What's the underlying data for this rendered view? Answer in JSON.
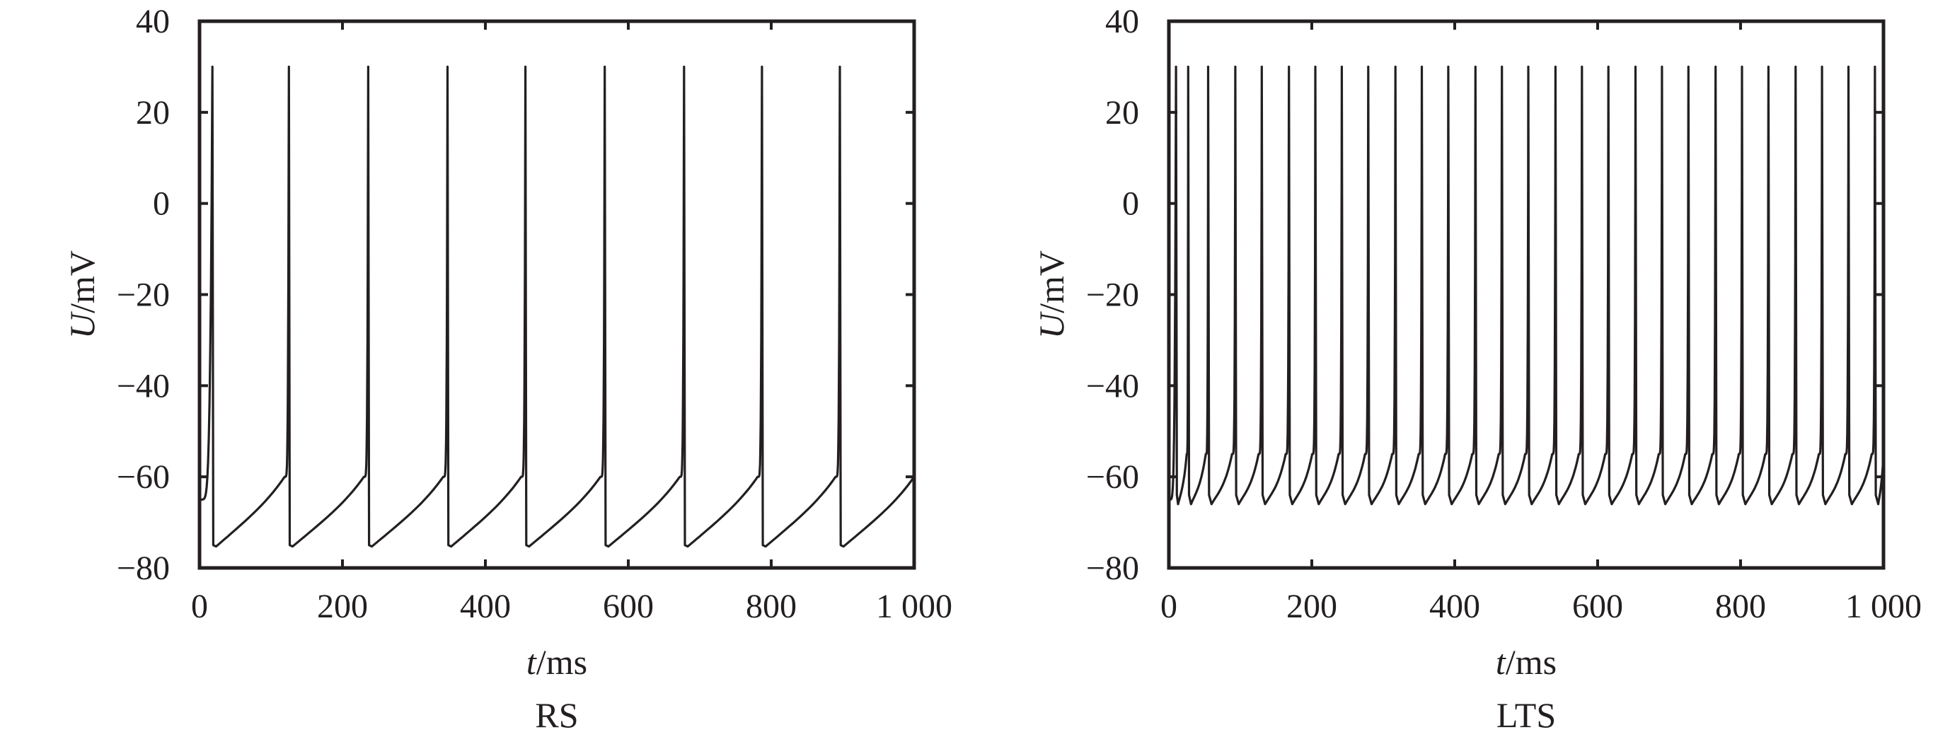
{
  "chart_data": [
    {
      "type": "line",
      "caption": "RS",
      "xlabel_var": "t",
      "xlabel_unit": "/ms",
      "ylabel_var": "U",
      "ylabel_unit": "/mV",
      "xlim": [
        0,
        1000
      ],
      "ylim": [
        -80,
        40
      ],
      "x_ticks": [
        0,
        200,
        400,
        600,
        800,
        1000
      ],
      "x_tick_labels": [
        "0",
        "200",
        "400",
        "600",
        "800",
        "1 000"
      ],
      "y_ticks": [
        -80,
        -60,
        -40,
        -20,
        0,
        20,
        40
      ],
      "y_tick_labels": [
        "−80",
        "−60",
        "−40",
        "−20",
        "0",
        "20",
        "40"
      ],
      "grid": false,
      "series": [
        {
          "spike_times_ms": [
            18,
            125,
            236,
            347,
            456,
            567,
            678,
            787,
            896
          ],
          "peak_mV": 30,
          "reset_mV": -75,
          "pre_spike_mV": -60,
          "initial_mV": -65
        }
      ]
    },
    {
      "type": "line",
      "caption": "LTS",
      "xlabel_var": "t",
      "xlabel_unit": "/ms",
      "ylabel_var": "U",
      "ylabel_unit": "/mV",
      "xlim": [
        0,
        1000
      ],
      "ylim": [
        -80,
        40
      ],
      "x_ticks": [
        0,
        200,
        400,
        600,
        800,
        1000
      ],
      "x_tick_labels": [
        "0",
        "200",
        "400",
        "600",
        "800",
        "1 000"
      ],
      "y_ticks": [
        -80,
        -60,
        -40,
        -20,
        0,
        20,
        40
      ],
      "y_tick_labels": [
        "−80",
        "−60",
        "−40",
        "−20",
        "0",
        "20",
        "40"
      ],
      "grid": false,
      "series": [
        {
          "spike_times_ms": [
            10,
            27,
            55,
            93,
            130,
            168,
            205,
            242,
            279,
            317,
            354,
            391,
            429,
            466,
            503,
            541,
            578,
            615,
            653,
            690,
            727,
            765,
            802,
            839,
            877,
            914,
            951,
            988
          ],
          "peak_mV": 30,
          "reset_mV": -64,
          "trough_mV": -66,
          "pre_spike_mV": -55,
          "initial_mV": -65
        }
      ]
    }
  ]
}
